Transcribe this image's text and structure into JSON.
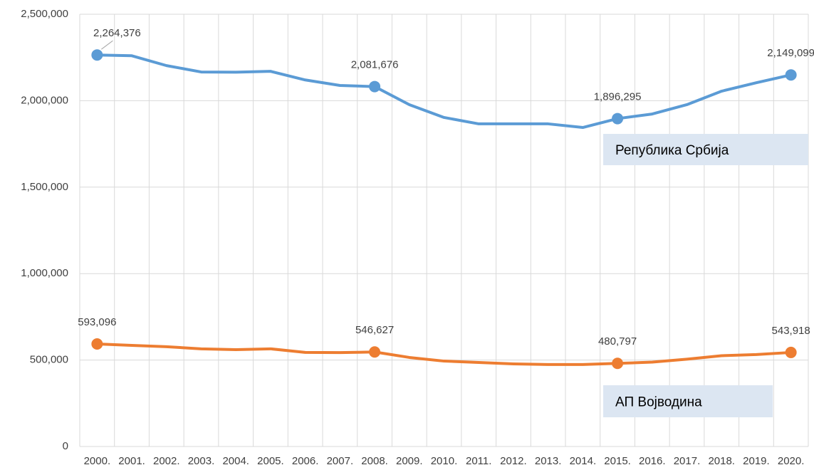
{
  "chart_data": {
    "type": "line",
    "categories": [
      "2000.",
      "2001.",
      "2002.",
      "2003.",
      "2004.",
      "2005.",
      "2006.",
      "2007.",
      "2008.",
      "2009.",
      "2010.",
      "2011.",
      "2012.",
      "2013.",
      "2014.",
      "2015.",
      "2016.",
      "2017.",
      "2018.",
      "2019.",
      "2020."
    ],
    "series": [
      {
        "name": "Република Србија",
        "color": "#5b9bd5",
        "values": [
          2264376,
          2260000,
          2203000,
          2166000,
          2165000,
          2170000,
          2120000,
          2088000,
          2081676,
          1977000,
          1903000,
          1866000,
          1866000,
          1866000,
          1845000,
          1896295,
          1923000,
          1977000,
          2055000,
          2104000,
          2149099
        ],
        "value_labels": [
          "2,264,376",
          null,
          null,
          null,
          null,
          null,
          null,
          null,
          "2,081,676",
          null,
          null,
          null,
          null,
          null,
          null,
          "1,896,295",
          null,
          null,
          null,
          null,
          "2,149,099"
        ]
      },
      {
        "name": "АП Војводина",
        "color": "#ed7d31",
        "values": [
          593096,
          585000,
          577000,
          565000,
          560000,
          565000,
          544000,
          543000,
          546627,
          515000,
          494000,
          486000,
          478000,
          474000,
          474000,
          480797,
          488000,
          505000,
          525000,
          532000,
          543918
        ],
        "value_labels": [
          "593,096",
          null,
          null,
          null,
          null,
          null,
          null,
          null,
          "546,627",
          null,
          null,
          null,
          null,
          null,
          null,
          "480,797",
          null,
          null,
          null,
          null,
          "543,918"
        ]
      }
    ],
    "ylim": [
      0,
      2500000
    ],
    "yticks": [
      0,
      {
        "value": 500000,
        "label": "500,000"
      },
      {
        "value": 1000000,
        "label": "1,000,000"
      },
      {
        "value": 1500000,
        "label": "1,500,000"
      },
      {
        "value": 2000000,
        "label": "2,000,000"
      },
      {
        "value": 2500000,
        "label": "2,500,000"
      }
    ],
    "grid": true
  }
}
